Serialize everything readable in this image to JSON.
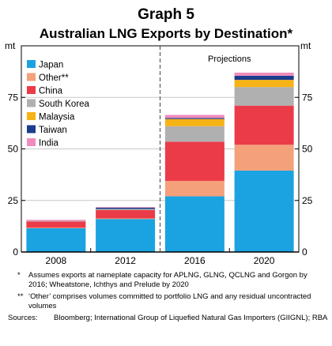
{
  "chart_data": {
    "type": "bar",
    "stacked": true,
    "title": "Graph 5",
    "subtitle": "Australian LNG Exports by Destination*",
    "unit_left": "mt",
    "unit_right": "mt",
    "ylim": [
      0,
      100
    ],
    "yticks": [
      0,
      25,
      50,
      75,
      100
    ],
    "ytick_labels": [
      "0",
      "25",
      "50",
      "75",
      ""
    ],
    "categories": [
      "2008",
      "2012",
      "2016",
      "2020"
    ],
    "projection_label": "Projections",
    "projection_from": "2016",
    "legend_position": "top-left",
    "series": [
      {
        "name": "Japan",
        "color": "#1aa3e0",
        "values": [
          11.5,
          16,
          27,
          39.5
        ]
      },
      {
        "name": "Other**",
        "color": "#f4a07a",
        "values": [
          0.3,
          0.3,
          7.5,
          12.5
        ]
      },
      {
        "name": "China",
        "color": "#ec3b48",
        "values": [
          3,
          4,
          19,
          19
        ]
      },
      {
        "name": "South Korea",
        "color": "#b0b0b0",
        "values": [
          0.3,
          0.6,
          7.5,
          9
        ]
      },
      {
        "name": "Malaysia",
        "color": "#f6b316",
        "values": [
          0,
          0,
          3.5,
          3.5
        ]
      },
      {
        "name": "Taiwan",
        "color": "#1c3c8c",
        "values": [
          0,
          0.6,
          0.5,
          2
        ]
      },
      {
        "name": "India",
        "color": "#f08cbd",
        "values": [
          0.5,
          0.3,
          1.5,
          1.5
        ]
      }
    ]
  },
  "notes": {
    "note1_mark": "*",
    "note1_text": "Assumes exports at nameplate capacity for APLNG, GLNG, QCLNG and Gorgon by 2016; Wheatstone, Ichthys and Prelude by 2020",
    "note2_mark": "**",
    "note2_text": "‘Other’ comprises volumes committed to portfolio LNG and any residual uncontracted volumes",
    "sources_label": "Sources:",
    "sources_text": "Bloomberg; International Group of Liquefied Natural Gas Importers (GIIGNL); RBA"
  }
}
